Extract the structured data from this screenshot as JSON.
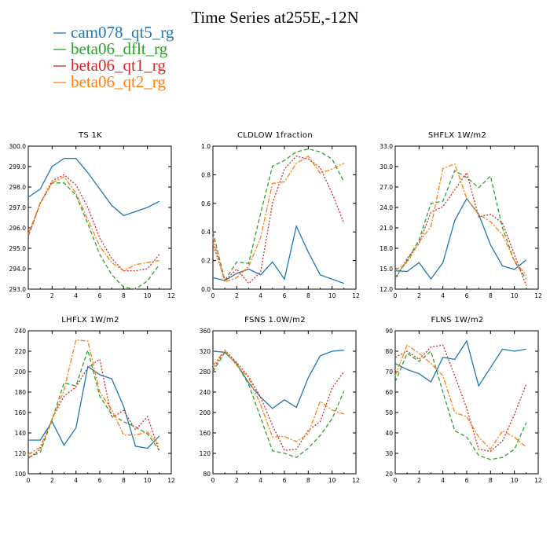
{
  "figure": {
    "title": "Time Series at255E,-12N"
  },
  "series": [
    {
      "name": "cam078_qt5_rg",
      "color": "#1f77b4",
      "dash": "solid"
    },
    {
      "name": "beta06_dflt_rg",
      "color": "#2ca02c",
      "dash": "dashed"
    },
    {
      "name": "beta06_qt1_rg",
      "color": "#d62728",
      "dash": "dotted"
    },
    {
      "name": "beta06_qt2_rg",
      "color": "#ff7f0e",
      "dash": "dashdot"
    }
  ],
  "chart_data": [
    {
      "type": "line",
      "title": "TS   1K",
      "x": [
        0,
        1,
        2,
        3,
        4,
        5,
        6,
        7,
        8,
        9,
        10,
        11
      ],
      "xlim": [
        0,
        12
      ],
      "xticks": [
        "0",
        "2",
        "4",
        "6",
        "8",
        "10",
        "12"
      ],
      "ylim": [
        293.0,
        300.0
      ],
      "yticks": [
        "293.0",
        "294.0",
        "295.0",
        "296.0",
        "297.0",
        "298.0",
        "299.0",
        "300.0"
      ],
      "series": [
        {
          "name": "cam078_qt5_rg",
          "values": [
            297.5,
            297.9,
            299.0,
            299.4,
            299.4,
            298.7,
            297.9,
            297.1,
            296.6,
            296.8,
            297.0,
            297.3
          ]
        },
        {
          "name": "beta06_dflt_rg",
          "values": [
            295.6,
            297.2,
            298.2,
            298.2,
            297.6,
            296.2,
            294.7,
            293.7,
            293.1,
            293.0,
            293.4,
            294.2
          ]
        },
        {
          "name": "beta06_qt1_rg",
          "values": [
            295.6,
            297.2,
            298.3,
            298.6,
            298.1,
            297.0,
            295.5,
            294.5,
            293.9,
            293.9,
            294.0,
            294.7
          ]
        },
        {
          "name": "beta06_qt2_rg",
          "values": [
            295.7,
            297.2,
            298.2,
            298.5,
            297.7,
            296.4,
            295.1,
            294.3,
            293.9,
            294.2,
            294.3,
            294.4
          ]
        }
      ]
    },
    {
      "type": "line",
      "title": "CLDLOW   1fraction",
      "x": [
        0,
        1,
        2,
        3,
        4,
        5,
        6,
        7,
        8,
        9,
        10,
        11
      ],
      "xlim": [
        0,
        12
      ],
      "xticks": [
        "0",
        "2",
        "4",
        "6",
        "8",
        "10",
        "12"
      ],
      "ylim": [
        0.0,
        1.0
      ],
      "yticks": [
        "0.0",
        "0.2",
        "0.4",
        "0.6",
        "0.8",
        "1.0"
      ],
      "series": [
        {
          "name": "cam078_qt5_rg",
          "values": [
            0.08,
            0.06,
            0.11,
            0.14,
            0.1,
            0.19,
            0.07,
            0.44,
            0.26,
            0.1,
            0.07,
            0.04
          ]
        },
        {
          "name": "beta06_dflt_rg",
          "values": [
            0.4,
            0.06,
            0.19,
            0.18,
            0.53,
            0.86,
            0.9,
            0.96,
            0.98,
            0.96,
            0.91,
            0.75
          ]
        },
        {
          "name": "beta06_qt1_rg",
          "values": [
            0.32,
            0.06,
            0.14,
            0.04,
            0.12,
            0.6,
            0.84,
            0.93,
            0.91,
            0.85,
            0.67,
            0.46
          ]
        },
        {
          "name": "beta06_qt2_rg",
          "values": [
            0.36,
            0.05,
            0.08,
            0.16,
            0.36,
            0.74,
            0.75,
            0.88,
            0.93,
            0.81,
            0.84,
            0.88
          ]
        }
      ]
    },
    {
      "type": "line",
      "title": "SHFLX   1W/m2",
      "x": [
        0,
        1,
        2,
        3,
        4,
        5,
        6,
        7,
        8,
        9,
        10,
        11
      ],
      "xlim": [
        0,
        12
      ],
      "xticks": [
        "0",
        "2",
        "4",
        "6",
        "8",
        "10",
        "12"
      ],
      "ylim": [
        12.0,
        33.0
      ],
      "yticks": [
        "12.0",
        "15.0",
        "18.0",
        "21.0",
        "24.0",
        "27.0",
        "30.0",
        "33.0"
      ],
      "series": [
        {
          "name": "cam078_qt5_rg",
          "values": [
            14.7,
            14.6,
            15.9,
            13.5,
            15.9,
            22.1,
            25.3,
            23.0,
            18.5,
            15.4,
            14.9,
            16.3
          ]
        },
        {
          "name": "beta06_dflt_rg",
          "values": [
            13.7,
            16.2,
            19.2,
            24.6,
            24.9,
            29.4,
            28.4,
            26.9,
            28.6,
            21.0,
            16.1,
            13.5
          ]
        },
        {
          "name": "beta06_qt1_rg",
          "values": [
            13.4,
            16.5,
            18.7,
            23.3,
            24.1,
            26.6,
            29.1,
            22.6,
            23.0,
            21.7,
            17.1,
            12.5
          ]
        },
        {
          "name": "beta06_qt2_rg",
          "values": [
            14.8,
            15.9,
            18.9,
            21.2,
            29.7,
            30.4,
            25.3,
            23.0,
            21.9,
            20.0,
            16.2,
            14.0
          ]
        }
      ]
    },
    {
      "type": "line",
      "title": "LHFLX   1W/m2",
      "x": [
        0,
        1,
        2,
        3,
        4,
        5,
        6,
        7,
        8,
        9,
        10,
        11
      ],
      "xlim": [
        0,
        12
      ],
      "xticks": [
        "0",
        "2",
        "4",
        "6",
        "8",
        "10",
        "12"
      ],
      "ylim": [
        100,
        240
      ],
      "yticks": [
        "100",
        "120",
        "140",
        "160",
        "180",
        "200",
        "220",
        "240"
      ],
      "series": [
        {
          "name": "cam078_qt5_rg",
          "values": [
            133,
            133,
            151,
            128,
            145,
            205,
            197,
            193,
            166,
            127,
            125,
            137
          ]
        },
        {
          "name": "beta06_dflt_rg",
          "values": [
            116,
            121,
            153,
            189,
            186,
            221,
            176,
            158,
            151,
            146,
            139,
            123
          ]
        },
        {
          "name": "beta06_qt1_rg",
          "values": [
            115,
            124,
            154,
            176,
            185,
            204,
            212,
            155,
            162,
            143,
            156,
            122
          ]
        },
        {
          "name": "beta06_qt2_rg",
          "values": [
            119,
            126,
            153,
            182,
            231,
            230,
            180,
            163,
            138,
            138,
            141,
            128
          ]
        }
      ]
    },
    {
      "type": "line",
      "title": "FSNS   1.0W/m2",
      "x": [
        0,
        1,
        2,
        3,
        4,
        5,
        6,
        7,
        8,
        9,
        10,
        11
      ],
      "xlim": [
        0,
        12
      ],
      "xticks": [
        "0",
        "2",
        "4",
        "6",
        "8",
        "10",
        "12"
      ],
      "ylim": [
        80,
        360
      ],
      "yticks": [
        "80",
        "120",
        "160",
        "200",
        "240",
        "280",
        "320",
        "360"
      ],
      "series": [
        {
          "name": "cam078_qt5_rg",
          "values": [
            320,
            318,
            295,
            258,
            230,
            208,
            225,
            210,
            268,
            311,
            320,
            322
          ]
        },
        {
          "name": "beta06_dflt_rg",
          "values": [
            280,
            318,
            295,
            255,
            190,
            125,
            120,
            112,
            130,
            155,
            188,
            242
          ]
        },
        {
          "name": "beta06_qt1_rg",
          "values": [
            285,
            322,
            298,
            270,
            230,
            175,
            126,
            128,
            165,
            182,
            248,
            280
          ]
        },
        {
          "name": "beta06_qt2_rg",
          "values": [
            292,
            322,
            292,
            268,
            215,
            152,
            153,
            143,
            158,
            222,
            205,
            197
          ]
        }
      ]
    },
    {
      "type": "line",
      "title": "FLNS   1W/m2",
      "x": [
        0,
        1,
        2,
        3,
        4,
        5,
        6,
        7,
        8,
        9,
        10,
        11
      ],
      "xlim": [
        0,
        12
      ],
      "xticks": [
        "0",
        "2",
        "4",
        "6",
        "8",
        "10",
        "12"
      ],
      "ylim": [
        20,
        90
      ],
      "yticks": [
        "20",
        "30",
        "40",
        "50",
        "60",
        "70",
        "80",
        "90"
      ],
      "series": [
        {
          "name": "cam078_qt5_rg",
          "values": [
            74,
            71,
            69,
            65,
            77,
            76,
            85,
            63,
            72,
            81,
            80,
            81
          ]
        },
        {
          "name": "beta06_dflt_rg",
          "values": [
            65,
            79,
            75,
            80,
            60,
            41,
            38,
            29,
            27,
            28,
            32,
            45
          ]
        },
        {
          "name": "beta06_qt1_rg",
          "values": [
            77,
            80,
            76,
            82,
            83,
            68,
            52,
            32,
            31,
            36,
            49,
            64
          ]
        },
        {
          "name": "beta06_qt2_rg",
          "values": [
            68,
            83,
            79,
            74,
            68,
            50,
            48,
            38,
            32,
            41,
            38,
            33
          ]
        }
      ]
    }
  ]
}
